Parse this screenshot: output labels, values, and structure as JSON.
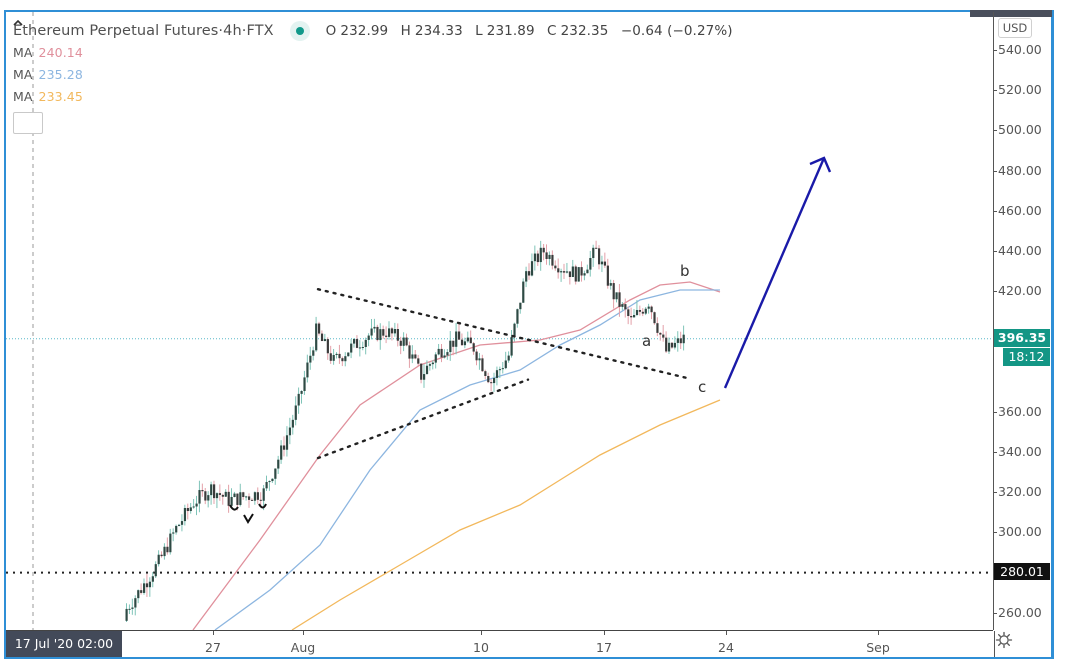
{
  "header": {
    "symbol": "Ethereum Perpetual Futures",
    "sep1": " · ",
    "interval": "4h",
    "sep2": " · ",
    "exchange": "FTX",
    "status_color": "#10998a",
    "ohlc": {
      "open_label": "O",
      "open": "232.99",
      "high_label": "H",
      "high": "234.33",
      "low_label": "L",
      "low": "231.89",
      "close_label": "C",
      "close": "232.35",
      "change": "−0.64 (−0.27%)"
    }
  },
  "indicators": [
    {
      "label": "MA",
      "value": "240.14",
      "color": "#e0909c"
    },
    {
      "label": "MA",
      "value": "235.28",
      "color": "#8db6e0"
    },
    {
      "label": "MA",
      "value": "233.45",
      "color": "#f2b85c"
    }
  ],
  "collapse_icon": "^",
  "price_axis": {
    "currency": "USD",
    "ticks": [
      "540.00",
      "520.00",
      "500.00",
      "480.00",
      "460.00",
      "440.00",
      "420.00",
      "400.00",
      "380.00",
      "360.00",
      "340.00",
      "320.00",
      "300.00",
      "280.00",
      "260.00"
    ],
    "current_price": "396.35",
    "countdown": "18:12",
    "horizontal_level": "280.01",
    "accent_color": "#139685"
  },
  "time_axis": {
    "crosshair_label": "17 Jul '20   02:00",
    "labels": [
      "27",
      "Aug",
      "10",
      "17",
      "24",
      "Sep"
    ],
    "settings_icon": "gear-icon"
  },
  "annotations": {
    "wave_labels": [
      "a",
      "b",
      "c"
    ],
    "arrow_color": "#1a1aa8"
  },
  "chart_data": {
    "type": "candlestick",
    "title": "Ethereum Perpetual Futures · 4h · FTX",
    "xlabel": "",
    "ylabel": "USD",
    "ylim": [
      250,
      545
    ],
    "x_ticks": [
      "27 Jul",
      "1 Aug",
      "10 Aug",
      "17 Aug",
      "24 Aug",
      "1 Sep"
    ],
    "y_ticks": [
      260,
      280,
      300,
      320,
      340,
      360,
      380,
      400,
      420,
      440,
      460,
      480,
      500,
      520,
      540
    ],
    "grid": false,
    "approx_close_path": [
      {
        "date": "2020-07-22",
        "price": 260
      },
      {
        "date": "2020-07-23",
        "price": 272
      },
      {
        "date": "2020-07-24",
        "price": 285
      },
      {
        "date": "2020-07-25",
        "price": 302
      },
      {
        "date": "2020-07-26",
        "price": 315
      },
      {
        "date": "2020-07-27",
        "price": 322
      },
      {
        "date": "2020-07-28",
        "price": 316
      },
      {
        "date": "2020-07-29",
        "price": 318
      },
      {
        "date": "2020-07-30",
        "price": 320
      },
      {
        "date": "2020-07-31",
        "price": 340
      },
      {
        "date": "2020-08-01",
        "price": 365
      },
      {
        "date": "2020-08-02",
        "price": 400
      },
      {
        "date": "2020-08-03",
        "price": 385
      },
      {
        "date": "2020-08-04",
        "price": 392
      },
      {
        "date": "2020-08-05",
        "price": 398
      },
      {
        "date": "2020-08-06",
        "price": 400
      },
      {
        "date": "2020-08-07",
        "price": 395
      },
      {
        "date": "2020-08-08",
        "price": 378
      },
      {
        "date": "2020-08-09",
        "price": 390
      },
      {
        "date": "2020-08-10",
        "price": 396
      },
      {
        "date": "2020-08-11",
        "price": 392
      },
      {
        "date": "2020-08-12",
        "price": 375
      },
      {
        "date": "2020-08-13",
        "price": 388
      },
      {
        "date": "2020-08-14",
        "price": 430
      },
      {
        "date": "2020-08-15",
        "price": 440
      },
      {
        "date": "2020-08-16",
        "price": 432
      },
      {
        "date": "2020-08-17",
        "price": 428
      },
      {
        "date": "2020-08-18",
        "price": 440
      },
      {
        "date": "2020-08-19",
        "price": 418
      },
      {
        "date": "2020-08-20",
        "price": 405
      },
      {
        "date": "2020-08-21",
        "price": 415
      },
      {
        "date": "2020-08-22",
        "price": 390
      },
      {
        "date": "2020-08-23",
        "price": 396.35
      }
    ],
    "moving_averages": [
      {
        "name": "MA (pink)",
        "legend_value": 240.14,
        "end_value": 418,
        "color": "#e0909c"
      },
      {
        "name": "MA (blue)",
        "legend_value": 235.28,
        "end_value": 405,
        "color": "#8db6e0"
      },
      {
        "name": "MA (orange)",
        "legend_value": 233.45,
        "end_value": 364,
        "color": "#f2b85c"
      }
    ],
    "drawings": {
      "triangle_upper": {
        "from": {
          "date": "2020-08-02",
          "price": 421
        },
        "to": {
          "date": "2020-08-23",
          "price": 377
        }
      },
      "triangle_lower": {
        "from": {
          "date": "2020-08-02",
          "price": 337
        },
        "to": {
          "date": "2020-08-14",
          "price": 376
        }
      },
      "horizontal_line": 280.01,
      "projection_arrow": {
        "from": {
          "date": "2020-08-23",
          "price": 372
        },
        "to": {
          "date": "2020-08-28",
          "price": 486
        }
      },
      "wave_labels": [
        {
          "label": "a",
          "price": 390
        },
        {
          "label": "b",
          "price": 424
        },
        {
          "label": "c",
          "price": 372
        }
      ]
    }
  }
}
